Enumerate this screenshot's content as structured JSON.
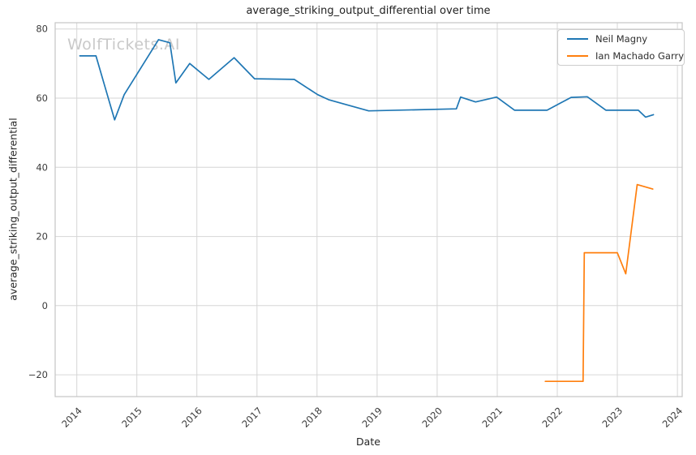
{
  "watermark": "WolfTickets.AI",
  "chart_data": {
    "type": "line",
    "title": "average_striking_output_differential over time",
    "xlabel": "Date",
    "ylabel": "average_striking_output_differential",
    "xlim": [
      2013.64,
      2024.08
    ],
    "ylim": [
      -26.3,
      81.8
    ],
    "grid": true,
    "legend_position": "upper right",
    "xticks": [
      2014,
      2015,
      2016,
      2017,
      2018,
      2019,
      2020,
      2021,
      2022,
      2023,
      2024
    ],
    "xtick_labels": [
      "2014",
      "2015",
      "2016",
      "2017",
      "2018",
      "2019",
      "2020",
      "2021",
      "2022",
      "2023",
      "2024"
    ],
    "yticks": [
      80,
      60,
      40,
      20,
      0,
      -20
    ],
    "ytick_labels": [
      "80",
      "60",
      "40",
      "20",
      "0",
      "−20"
    ],
    "series": [
      {
        "name": "Neil Magny",
        "color": "#1f77b4",
        "points": [
          [
            2014.05,
            72.2
          ],
          [
            2014.32,
            72.2
          ],
          [
            2014.63,
            53.7
          ],
          [
            2014.79,
            61.0
          ],
          [
            2015.36,
            76.9
          ],
          [
            2015.55,
            76.0
          ],
          [
            2015.65,
            64.4
          ],
          [
            2015.88,
            70.0
          ],
          [
            2016.2,
            65.4
          ],
          [
            2016.62,
            71.7
          ],
          [
            2016.96,
            65.6
          ],
          [
            2017.62,
            65.4
          ],
          [
            2018.01,
            61.0
          ],
          [
            2018.2,
            59.5
          ],
          [
            2018.86,
            56.3
          ],
          [
            2020.32,
            56.9
          ],
          [
            2020.39,
            60.3
          ],
          [
            2020.64,
            58.9
          ],
          [
            2020.99,
            60.3
          ],
          [
            2021.29,
            56.5
          ],
          [
            2021.83,
            56.5
          ],
          [
            2022.0,
            58.1
          ],
          [
            2022.23,
            60.2
          ],
          [
            2022.5,
            60.4
          ],
          [
            2022.81,
            56.5
          ],
          [
            2023.35,
            56.5
          ],
          [
            2023.47,
            54.5
          ],
          [
            2023.6,
            55.2
          ]
        ]
      },
      {
        "name": "Ian Machado Garry",
        "color": "#ff7f0e",
        "points": [
          [
            2021.8,
            -21.9
          ],
          [
            2022.43,
            -21.9
          ],
          [
            2022.45,
            15.3
          ],
          [
            2023.0,
            15.3
          ],
          [
            2023.14,
            9.2
          ],
          [
            2023.33,
            35.0
          ],
          [
            2023.59,
            33.7
          ]
        ]
      }
    ],
    "colors": {
      "grid": "#d6d6d6",
      "spine": "#c4c4c4",
      "title_text": "#1f1f1f",
      "tick_text": "#3c3c3c",
      "watermark": "#c9c9c9",
      "background": "#ffffff"
    }
  }
}
